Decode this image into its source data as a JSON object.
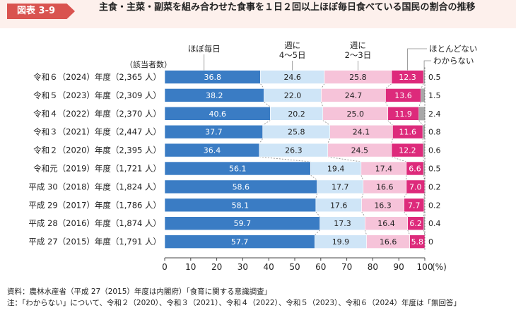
{
  "header": {
    "figure_label": "図表 3-9",
    "title": "主食・主菜・副菜を組み合わせた食事を１日２回以上ほぼ毎日食べている国民の割合の推移"
  },
  "notes": {
    "source": "資料：農林水産省（平成 27（2015）年度は内閣府）「食育に関する意識調査」",
    "note": "注：「わからない」について、令和２（2020）、令和３（2021）、令和４（2022）、令和５（2023）、令和６（2024）年度は「無回答」"
  },
  "chart_data": {
    "type": "bar",
    "orientation": "horizontal",
    "stacked": true,
    "categories_header": "（該当者数）",
    "categories": [
      "令和６（2024）年度（2,365 人）",
      "令和５（2023）年度（2,309 人）",
      "令和４（2022）年度（2,370 人）",
      "令和３（2021）年度（2,447 人）",
      "令和２（2020）年度（2,395 人）",
      "令和元（2019）年度（1,721 人）",
      "平成 30（2018）年度（1,824 人）",
      "平成 29（2017）年度（1,786 人）",
      "平成 28（2016）年度（1,874 人）",
      "平成 27（2015）年度（1,791 人）"
    ],
    "series": [
      {
        "name": "ほぼ毎日",
        "color": "#3a7cc4",
        "labels": [
          "ほぼ毎日"
        ],
        "values": [
          36.8,
          38.2,
          40.6,
          37.7,
          36.4,
          56.1,
          58.6,
          58.1,
          59.7,
          57.7
        ]
      },
      {
        "name": "週に 4〜5日",
        "color": "#cfe5f7",
        "labels": [
          "週に",
          "4〜5日"
        ],
        "values": [
          24.6,
          22.0,
          20.2,
          25.8,
          26.3,
          19.4,
          17.7,
          17.6,
          17.3,
          19.9
        ]
      },
      {
        "name": "週に 2〜3日",
        "color": "#f6c3d9",
        "labels": [
          "週に",
          "2〜3日"
        ],
        "values": [
          25.8,
          24.7,
          25.0,
          24.1,
          24.5,
          17.4,
          16.6,
          16.3,
          16.4,
          16.6
        ]
      },
      {
        "name": "ほとんどない",
        "color": "#dd2a7b",
        "values": [
          12.3,
          13.6,
          11.9,
          11.6,
          12.2,
          6.6,
          7.0,
          7.7,
          6.2,
          5.8
        ]
      },
      {
        "name": "わからない",
        "color": "#a8a8a8",
        "values": [
          0.5,
          1.5,
          2.4,
          0.8,
          0.6,
          0.5,
          0.2,
          0.2,
          0.4,
          0.0
        ]
      }
    ],
    "value_labels": {
      "s0": [
        "36.8",
        "38.2",
        "40.6",
        "37.7",
        "36.4",
        "56.1",
        "58.6",
        "58.1",
        "59.7",
        "57.7"
      ],
      "s1": [
        "24.6",
        "22.0",
        "20.2",
        "25.8",
        "26.3",
        "19.4",
        "17.7",
        "17.6",
        "17.3",
        "19.9"
      ],
      "s2": [
        "25.8",
        "24.7",
        "25.0",
        "24.1",
        "24.5",
        "17.4",
        "16.6",
        "16.3",
        "16.4",
        "16.6"
      ],
      "s3": [
        "12.3",
        "13.6",
        "11.9",
        "11.6",
        "12.2",
        "6.6",
        "7.0",
        "7.7",
        "6.2",
        "5.8"
      ],
      "s4": [
        "0.5",
        "1.5",
        "2.4",
        "0.8",
        "0.6",
        "0.5",
        "0.2",
        "0.2",
        "0.4",
        "0"
      ]
    },
    "legend_labels": {
      "s3": "ほとんどない",
      "s4": "わからない"
    },
    "xlim": [
      0,
      100
    ],
    "x_ticks": [
      "0",
      "10",
      "20",
      "30",
      "40",
      "50",
      "60",
      "70",
      "80",
      "90",
      "100"
    ],
    "x_unit": "(%)",
    "grid": false
  }
}
